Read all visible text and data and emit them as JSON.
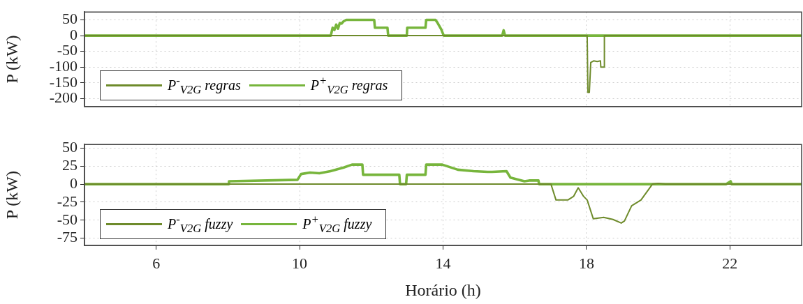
{
  "chart_data": [
    {
      "type": "line",
      "ylabel": "P (kW)",
      "xlim": [
        4,
        24
      ],
      "xticks": [
        6,
        10,
        14,
        18,
        22
      ],
      "ylim": [
        -225,
        75
      ],
      "yticks": [
        50,
        0,
        -50,
        -100,
        -150,
        -200
      ],
      "grid": true,
      "legend": "bottom left",
      "tick_labels": "y",
      "line_style": "solid",
      "marker": "none",
      "series": [
        {
          "name": "P$^{-}$$_{V2G}$ regras",
          "color": "#6e8b2b",
          "x": [
            4,
            18.02,
            18.04,
            18.08,
            18.12,
            18.2,
            18.3,
            18.39,
            18.4,
            18.49,
            18.5,
            24
          ],
          "values": [
            0,
            0,
            -180,
            -180,
            -85,
            -80,
            -82,
            -80,
            -100,
            -100,
            0,
            0
          ]
        },
        {
          "name": "P$^{+}$$_{V2G}$ regras",
          "color": "#77b53c",
          "x": [
            4,
            10.87,
            10.92,
            10.97,
            11.02,
            11.07,
            11.12,
            11.17,
            11.22,
            11.3,
            12.08,
            12.1,
            12.45,
            12.47,
            12.99,
            13.0,
            13.51,
            13.53,
            13.79,
            13.85,
            13.9,
            13.95,
            14.02,
            15.65,
            15.69,
            15.73,
            24
          ],
          "values": [
            0,
            0,
            25,
            18,
            35,
            22,
            40,
            38,
            45,
            50,
            50,
            25,
            25,
            0,
            0,
            25,
            25,
            50,
            50,
            40,
            30,
            20,
            0,
            0,
            17,
            0,
            0
          ]
        }
      ]
    },
    {
      "type": "line",
      "ylabel": "P (kW)",
      "xlabel": "Horário (h)",
      "xlim": [
        4,
        24
      ],
      "xticks": [
        6,
        10,
        14,
        18,
        22
      ],
      "ylim": [
        -85,
        55
      ],
      "yticks": [
        50,
        25,
        0,
        -25,
        -50,
        -75
      ],
      "grid": true,
      "legend": "bottom left",
      "line_style": "solid",
      "marker": "none",
      "series": [
        {
          "name": "P$^{-}$$_{V2G}$ fuzzy",
          "color": "#6e8b2b",
          "x": [
            4,
            17.01,
            17.15,
            17.48,
            17.64,
            17.77,
            17.92,
            18.02,
            18.19,
            18.48,
            18.74,
            18.97,
            19.06,
            19.26,
            19.52,
            19.84,
            20.0,
            20.2,
            24
          ],
          "values": [
            0,
            0,
            -22,
            -22,
            -17,
            -5,
            -17,
            -22,
            -48,
            -46,
            -49,
            -54,
            -51,
            -30,
            -22,
            0,
            1,
            0,
            0
          ]
        },
        {
          "name": "P$^{+}$$_{V2G}$ fuzzy",
          "color": "#77b53c",
          "x": [
            4,
            8.02,
            8.03,
            9.94,
            10.04,
            10.29,
            10.55,
            10.86,
            11.23,
            11.46,
            11.75,
            11.77,
            12.78,
            12.8,
            12.97,
            12.99,
            13.51,
            13.53,
            13.98,
            14.41,
            14.85,
            15.24,
            15.37,
            15.77,
            15.88,
            16.27,
            16.4,
            16.66,
            16.68,
            21.9,
            22.02,
            22.05,
            24
          ],
          "values": [
            0,
            0,
            4,
            6,
            14,
            16,
            15,
            18,
            23,
            27,
            27,
            13,
            13,
            0,
            0,
            13,
            13,
            27,
            27,
            20,
            18,
            17,
            17,
            18,
            9,
            4,
            5,
            5,
            0,
            0,
            4,
            0,
            0
          ]
        }
      ]
    }
  ]
}
